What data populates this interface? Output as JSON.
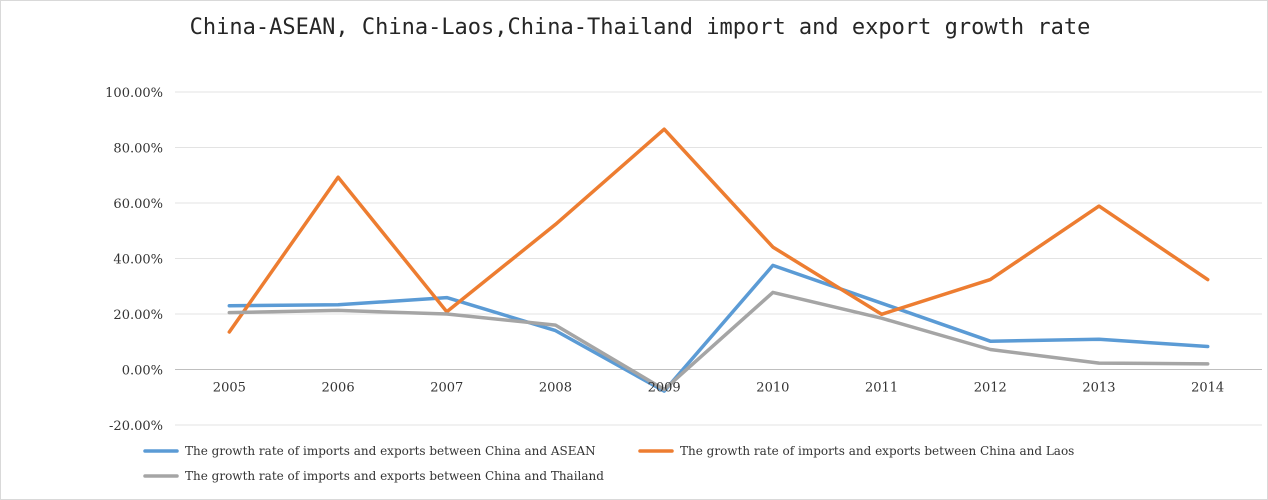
{
  "chart_data": {
    "type": "line",
    "title": "China-ASEAN, China-Laos,China-Thailand import and export growth rate",
    "categories": [
      "2005",
      "2006",
      "2007",
      "2008",
      "2009",
      "2010",
      "2011",
      "2012",
      "2013",
      "2014"
    ],
    "y_ticks": [
      "100.00%",
      "80.00%",
      "60.00%",
      "40.00%",
      "20.00%",
      "0.00%",
      "-20.00%"
    ],
    "ylim": [
      -20,
      100
    ],
    "grid": true,
    "legend_position": "bottom",
    "series": [
      {
        "name": "The growth rate of imports and exports between China and ASEAN",
        "color": "#5b9bd5",
        "values": [
          23.0,
          23.3,
          25.9,
          14.0,
          -7.8,
          37.5,
          23.9,
          10.2,
          10.9,
          8.3
        ]
      },
      {
        "name": "The growth rate of imports and exports between China and Laos",
        "color": "#ed7d31",
        "values": [
          13.5,
          69.3,
          20.8,
          52.3,
          86.6,
          44.1,
          19.9,
          32.4,
          58.9,
          32.4
        ]
      },
      {
        "name": "The growth rate of imports and exports between China and Thailand",
        "color": "#a5a5a5",
        "values": [
          20.5,
          21.3,
          20.0,
          16.0,
          -7.2,
          27.8,
          18.5,
          7.2,
          2.3,
          2.0
        ]
      }
    ]
  }
}
